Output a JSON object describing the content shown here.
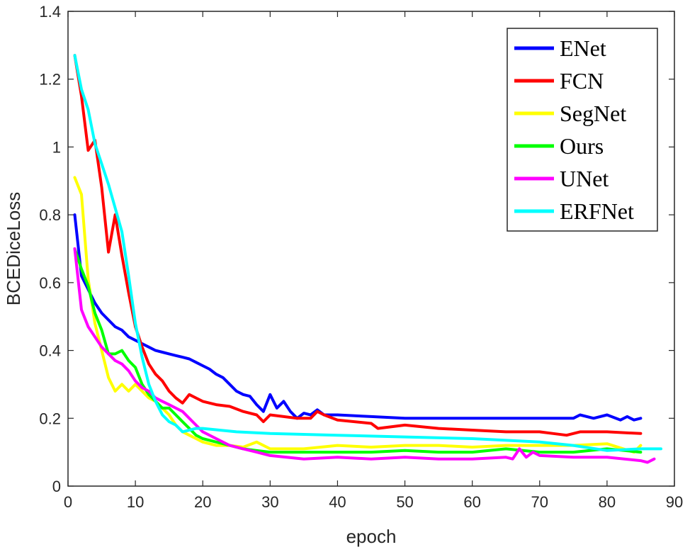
{
  "chart_data": {
    "type": "line",
    "xlabel": "epoch",
    "ylabel": "BCEDiceLoss",
    "xlim": [
      0,
      90
    ],
    "ylim": [
      0,
      1.4
    ],
    "xticks": [
      "0",
      "10",
      "20",
      "30",
      "40",
      "50",
      "60",
      "70",
      "80",
      "90"
    ],
    "yticks": [
      "0",
      "0.2",
      "0.4",
      "0.6",
      "0.8",
      "1",
      "1.2",
      "1.4"
    ],
    "grid": false,
    "legend_position": "top-right",
    "series": [
      {
        "name": "ENet",
        "color": "#0000ff",
        "x": [
          1,
          2,
          3,
          4,
          5,
          6,
          7,
          8,
          9,
          10,
          11,
          12,
          13,
          14,
          15,
          16,
          17,
          18,
          19,
          20,
          21,
          22,
          23,
          24,
          25,
          26,
          27,
          28,
          29,
          30,
          31,
          32,
          33,
          34,
          35,
          36,
          37,
          38,
          39,
          40,
          45,
          50,
          55,
          60,
          65,
          70,
          75,
          76,
          78,
          80,
          82,
          83,
          84,
          85
        ],
        "y": [
          0.8,
          0.62,
          0.58,
          0.54,
          0.51,
          0.49,
          0.47,
          0.46,
          0.44,
          0.43,
          0.42,
          0.41,
          0.4,
          0.395,
          0.39,
          0.385,
          0.38,
          0.375,
          0.365,
          0.355,
          0.345,
          0.33,
          0.32,
          0.3,
          0.28,
          0.27,
          0.265,
          0.24,
          0.22,
          0.27,
          0.23,
          0.25,
          0.22,
          0.2,
          0.215,
          0.21,
          0.225,
          0.21,
          0.21,
          0.21,
          0.205,
          0.2,
          0.2,
          0.2,
          0.2,
          0.2,
          0.2,
          0.21,
          0.2,
          0.21,
          0.195,
          0.205,
          0.195,
          0.2
        ]
      },
      {
        "name": "FCN",
        "color": "#ff0000",
        "x": [
          1,
          2,
          3,
          4,
          5,
          6,
          7,
          8,
          9,
          10,
          11,
          12,
          13,
          14,
          15,
          16,
          17,
          18,
          19,
          20,
          22,
          24,
          26,
          28,
          29,
          30,
          32,
          34,
          36,
          37,
          38,
          40,
          45,
          46,
          50,
          55,
          60,
          65,
          70,
          72,
          74,
          76,
          80,
          85
        ],
        "y": [
          1.27,
          1.15,
          0.99,
          1.02,
          0.88,
          0.69,
          0.8,
          0.68,
          0.57,
          0.47,
          0.41,
          0.36,
          0.33,
          0.31,
          0.28,
          0.26,
          0.245,
          0.27,
          0.26,
          0.25,
          0.24,
          0.235,
          0.22,
          0.21,
          0.19,
          0.21,
          0.205,
          0.2,
          0.2,
          0.22,
          0.21,
          0.195,
          0.185,
          0.17,
          0.18,
          0.17,
          0.165,
          0.16,
          0.16,
          0.155,
          0.15,
          0.16,
          0.16,
          0.155
        ]
      },
      {
        "name": "SegNet",
        "color": "#ffff00",
        "x": [
          1,
          2,
          3,
          4,
          5,
          6,
          7,
          8,
          9,
          10,
          11,
          12,
          13,
          14,
          15,
          16,
          17,
          18,
          19,
          20,
          22,
          24,
          26,
          28,
          30,
          35,
          40,
          45,
          50,
          55,
          60,
          65,
          70,
          75,
          80,
          84,
          85
        ],
        "y": [
          0.91,
          0.86,
          0.61,
          0.48,
          0.4,
          0.32,
          0.28,
          0.3,
          0.28,
          0.3,
          0.28,
          0.26,
          0.25,
          0.23,
          0.21,
          0.18,
          0.16,
          0.15,
          0.14,
          0.13,
          0.12,
          0.12,
          0.115,
          0.13,
          0.11,
          0.11,
          0.12,
          0.115,
          0.12,
          0.12,
          0.115,
          0.12,
          0.12,
          0.12,
          0.125,
          0.1,
          0.12
        ]
      },
      {
        "name": "Ours",
        "color": "#00ff00",
        "x": [
          1,
          2,
          3,
          4,
          5,
          6,
          7,
          8,
          9,
          10,
          11,
          12,
          13,
          14,
          15,
          16,
          17,
          18,
          19,
          20,
          22,
          24,
          26,
          28,
          30,
          35,
          40,
          45,
          50,
          55,
          60,
          65,
          70,
          75,
          80,
          85
        ],
        "y": [
          0.7,
          0.64,
          0.59,
          0.51,
          0.46,
          0.39,
          0.39,
          0.4,
          0.37,
          0.35,
          0.3,
          0.27,
          0.25,
          0.23,
          0.23,
          0.21,
          0.19,
          0.17,
          0.15,
          0.14,
          0.13,
          0.12,
          0.11,
          0.105,
          0.1,
          0.1,
          0.1,
          0.1,
          0.105,
          0.1,
          0.1,
          0.11,
          0.1,
          0.1,
          0.11,
          0.1
        ]
      },
      {
        "name": "UNet",
        "color": "#ff00ff",
        "x": [
          1,
          2,
          3,
          4,
          5,
          6,
          7,
          8,
          9,
          10,
          11,
          12,
          13,
          14,
          15,
          16,
          17,
          18,
          19,
          20,
          22,
          24,
          26,
          28,
          30,
          35,
          40,
          45,
          50,
          55,
          60,
          65,
          66,
          67,
          68,
          69,
          70,
          75,
          80,
          85,
          86,
          87
        ],
        "y": [
          0.7,
          0.52,
          0.47,
          0.44,
          0.41,
          0.39,
          0.37,
          0.36,
          0.34,
          0.31,
          0.29,
          0.28,
          0.26,
          0.25,
          0.24,
          0.23,
          0.22,
          0.2,
          0.18,
          0.16,
          0.14,
          0.12,
          0.11,
          0.1,
          0.09,
          0.08,
          0.085,
          0.08,
          0.085,
          0.08,
          0.08,
          0.085,
          0.08,
          0.11,
          0.085,
          0.1,
          0.09,
          0.085,
          0.085,
          0.075,
          0.07,
          0.08
        ]
      },
      {
        "name": "ERFNet",
        "color": "#00ffff",
        "x": [
          1,
          2,
          3,
          4,
          5,
          6,
          7,
          8,
          9,
          10,
          11,
          12,
          13,
          14,
          15,
          16,
          17,
          18,
          19,
          20,
          25,
          30,
          40,
          50,
          60,
          70,
          75,
          80,
          85,
          88
        ],
        "y": [
          1.27,
          1.17,
          1.11,
          1.01,
          0.95,
          0.89,
          0.82,
          0.75,
          0.62,
          0.48,
          0.38,
          0.3,
          0.25,
          0.21,
          0.19,
          0.18,
          0.16,
          0.165,
          0.17,
          0.17,
          0.16,
          0.155,
          0.15,
          0.145,
          0.14,
          0.13,
          0.12,
          0.105,
          0.11,
          0.11
        ]
      }
    ]
  }
}
